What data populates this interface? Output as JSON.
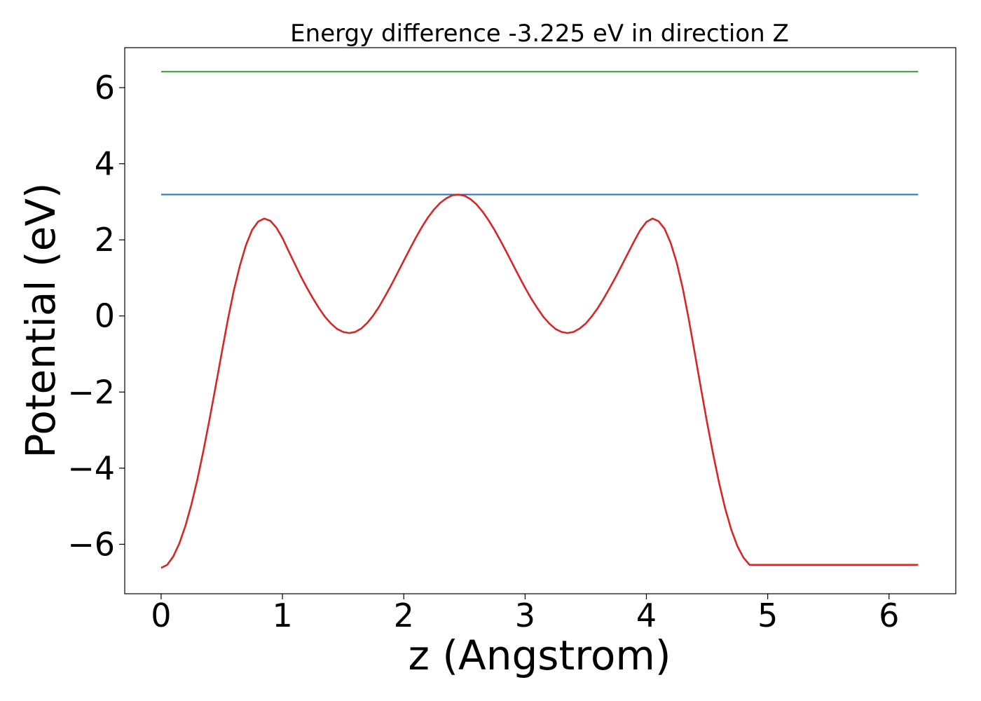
{
  "chart_data": {
    "type": "line",
    "title": "Energy difference -3.225 eV in direction Z",
    "xlabel": "z (Angstrom)",
    "ylabel": "Potential (eV)",
    "xlim": [
      -0.3,
      6.55
    ],
    "ylim": [
      -7.3,
      7.05
    ],
    "xticks": [
      0,
      1,
      2,
      3,
      4,
      5,
      6
    ],
    "yticks": [
      -6,
      -4,
      -2,
      0,
      2,
      4,
      6
    ],
    "ytick_labels": [
      "−6",
      "−4",
      "−2",
      "0",
      "2",
      "4",
      "6"
    ],
    "grid": false,
    "series": [
      {
        "color": "#2ca02c",
        "x": [
          0,
          6.24
        ],
        "y": [
          6.42,
          6.42
        ]
      },
      {
        "color": "#1f77b4",
        "x": [
          0,
          6.24
        ],
        "y": [
          3.19,
          3.19
        ]
      },
      {
        "color": "#d62728",
        "x": [
          0,
          0.05,
          0.1,
          0.15,
          0.2,
          0.25,
          0.3,
          0.35,
          0.4,
          0.45,
          0.5,
          0.55,
          0.6,
          0.65,
          0.7,
          0.75,
          0.8,
          0.85,
          0.9,
          0.95,
          1.0,
          1.05,
          1.1,
          1.15,
          1.2,
          1.25,
          1.3,
          1.35,
          1.4,
          1.45,
          1.5,
          1.55,
          1.6,
          1.65,
          1.7,
          1.75,
          1.8,
          1.85,
          1.9,
          1.95,
          2.0,
          2.05,
          2.1,
          2.15,
          2.2,
          2.25,
          2.3,
          2.35,
          2.4,
          2.45,
          2.5,
          2.55,
          2.6,
          2.65,
          2.7,
          2.75,
          2.8,
          2.85,
          2.9,
          2.95,
          3.0,
          3.05,
          3.1,
          3.15,
          3.2,
          3.25,
          3.3,
          3.35,
          3.4,
          3.45,
          3.5,
          3.55,
          3.6,
          3.65,
          3.7,
          3.75,
          3.8,
          3.85,
          3.9,
          3.95,
          4.0,
          4.05,
          4.1,
          4.15,
          4.2,
          4.25,
          4.3,
          4.35,
          4.4,
          4.45,
          4.5,
          4.55,
          4.6,
          4.65,
          4.7,
          4.75,
          4.8,
          4.85,
          4.9,
          4.95,
          5.0,
          5.05,
          5.1,
          5.15,
          5.2,
          5.25,
          5.3,
          5.35,
          5.4,
          5.45,
          5.5,
          5.55,
          5.6,
          5.65,
          5.7,
          5.75,
          5.8,
          5.85,
          5.9,
          5.95,
          6.0,
          6.05,
          6.1,
          6.15,
          6.2,
          6.24
        ],
        "y": [
          -6.62,
          -6.54,
          -6.32,
          -5.98,
          -5.52,
          -4.95,
          -4.28,
          -3.52,
          -2.7,
          -1.84,
          -0.96,
          -0.1,
          0.68,
          1.33,
          1.87,
          2.26,
          2.48,
          2.56,
          2.5,
          2.32,
          2.05,
          1.71,
          1.38,
          1.05,
          0.75,
          0.47,
          0.21,
          -0.02,
          -0.2,
          -0.34,
          -0.42,
          -0.45,
          -0.42,
          -0.33,
          -0.18,
          0.02,
          0.26,
          0.54,
          0.83,
          1.14,
          1.45,
          1.76,
          2.06,
          2.34,
          2.59,
          2.8,
          2.97,
          3.09,
          3.17,
          3.19,
          3.16,
          3.07,
          2.93,
          2.74,
          2.51,
          2.25,
          1.96,
          1.66,
          1.35,
          1.04,
          0.74,
          0.46,
          0.21,
          -0.02,
          -0.2,
          -0.34,
          -0.42,
          -0.45,
          -0.42,
          -0.33,
          -0.2,
          -0.01,
          0.21,
          0.47,
          0.75,
          1.04,
          1.35,
          1.66,
          1.97,
          2.26,
          2.47,
          2.56,
          2.49,
          2.29,
          1.92,
          1.4,
          0.72,
          -0.1,
          -1.0,
          -1.91,
          -2.8,
          -3.63,
          -4.4,
          -5.07,
          -5.62,
          -6.05,
          -6.35,
          -6.54,
          -6.54,
          -6.54,
          -6.54,
          -6.54,
          -6.54,
          -6.54,
          -6.54,
          -6.54,
          -6.54,
          -6.54,
          -6.54,
          -6.54,
          -6.54,
          -6.54,
          -6.54,
          -6.54,
          -6.54,
          -6.54,
          -6.54,
          -6.54,
          -6.54,
          -6.54,
          -6.54,
          -6.54,
          -6.54,
          -6.54,
          -6.54,
          -6.54
        ]
      }
    ]
  }
}
